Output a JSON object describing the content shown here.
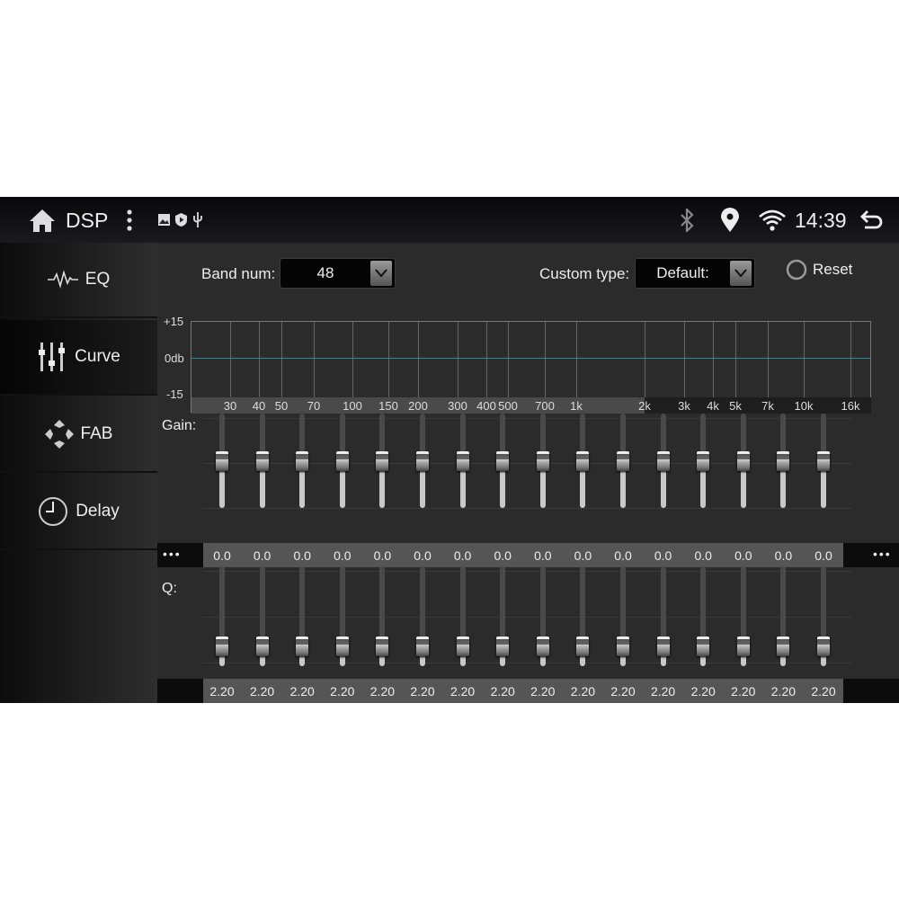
{
  "status": {
    "title": "DSP",
    "time": "14:39",
    "icons": [
      "home-icon",
      "more-vert-icon",
      "image-icon",
      "shield-play-icon",
      "usb-icon",
      "bluetooth-icon",
      "location-icon",
      "wifi-icon",
      "back-icon"
    ]
  },
  "sidebar": {
    "items": [
      {
        "label": "EQ",
        "icon": "waveform-icon"
      },
      {
        "label": "Curve",
        "icon": "sliders-icon",
        "selected": true
      },
      {
        "label": "FAB",
        "icon": "fader-balance-icon"
      },
      {
        "label": "Delay",
        "icon": "clock-icon"
      }
    ]
  },
  "controls": {
    "band_label": "Band num:",
    "band_value": "48",
    "custom_label": "Custom type:",
    "custom_value": "Default:",
    "reset_label": "Reset"
  },
  "graph": {
    "y_max": "+15",
    "y_zero": "0db",
    "y_min": "-15",
    "freq_labels": [
      "30",
      "40",
      "50",
      "70",
      "100",
      "150",
      "200",
      "300",
      "400",
      "500",
      "700",
      "1k",
      "2k",
      "3k",
      "4k",
      "5k",
      "7k",
      "10k",
      "16k"
    ],
    "curve_color": "#2a8a9a"
  },
  "gain": {
    "label": "Gain:",
    "more": "•••",
    "values": [
      "0.0",
      "0.0",
      "0.0",
      "0.0",
      "0.0",
      "0.0",
      "0.0",
      "0.0",
      "0.0",
      "0.0",
      "0.0",
      "0.0",
      "0.0",
      "0.0",
      "0.0",
      "0.0"
    ],
    "range": [
      -15,
      15
    ]
  },
  "q": {
    "label": "Q:",
    "values": [
      "2.20",
      "2.20",
      "2.20",
      "2.20",
      "2.20",
      "2.20",
      "2.20",
      "2.20",
      "2.20",
      "2.20",
      "2.20",
      "2.20",
      "2.20",
      "2.20",
      "2.20",
      "2.20"
    ]
  }
}
